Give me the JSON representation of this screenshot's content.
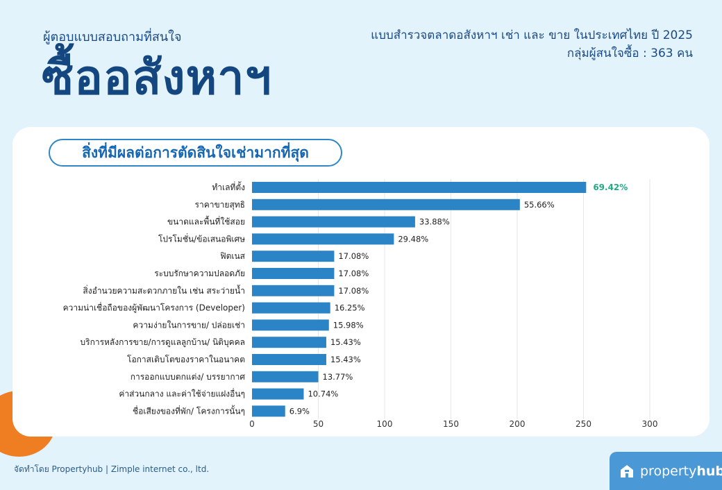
{
  "header": {
    "respondent_label": "ผู้ตอบแบบสอบถามที่สนใจ",
    "title": "ซื้ออสังหาฯ",
    "survey_title": "แบบสำรวจตลาดอสังหาฯ เช่า และ ขาย ในประเทศไทย ปี 2025",
    "group_label": "กลุ่มผู้สนใจซื้อ : 363 คน"
  },
  "chart_title": "สิ่งที่มีผลต่อการตัดสินใจเช่ามากที่สุด",
  "chart_data": {
    "type": "bar",
    "orientation": "horizontal",
    "title": "สิ่งที่มีผลต่อการตัดสินใจเช่ามากที่สุด",
    "categories": [
      "ทำเลที่ตั้ง",
      "ราคาขายสุทธิ",
      "ขนาดและพื้นที่ใช้สอย",
      "โปรโมชั่น/ข้อเสนอพิเศษ",
      "ฟิตเนส",
      "ระบบรักษาความปลอดภัย",
      "สิ่งอำนวยความสะดวกภายใน เช่น สระว่ายน้ำ",
      "ความน่าเชื่อถือของผู้พัฒนาโครงการ (Developer)",
      "ความง่ายในการขาย/ ปล่อยเช่า",
      "บริการหลังการขาย/การดูแลลูกบ้าน/ นิติบุคคล",
      "โอกาสเติบโตของราคาในอนาคต",
      "การออกแบบตกแต่ง/ บรรยากาศ",
      "ค่าส่วนกลาง และค่าใช้จ่ายแฝงอื่นๆ",
      "ชื่อเสียงของที่พัก/ โครงการนั้นๆ"
    ],
    "values": [
      252,
      202,
      123,
      107,
      62,
      62,
      62,
      59,
      58,
      56,
      56,
      50,
      39,
      25
    ],
    "labels": [
      "69.42%",
      "55.66%",
      "33.88%",
      "29.48%",
      "17.08%",
      "17.08%",
      "17.08%",
      "16.25%",
      "15.98%",
      "15.43%",
      "15.43%",
      "13.77%",
      "10.74%",
      "6.9%"
    ],
    "xlim": [
      0,
      300
    ],
    "xticks": [
      "0",
      "50",
      "100",
      "150",
      "200",
      "250",
      "300"
    ],
    "grid": true,
    "bar_color": "#2a84c6",
    "highlight_label_color": "#22a98a"
  },
  "footer": {
    "credit": "จัดทำโดย Propertyhub | Zimple internet co., ltd.",
    "brand_light": "property",
    "brand_bold": "hub"
  },
  "colors": {
    "background": "#e3f3fc",
    "title": "#14477f",
    "accent_orange": "#ef7d22",
    "brand_blue": "#4a98d6"
  }
}
